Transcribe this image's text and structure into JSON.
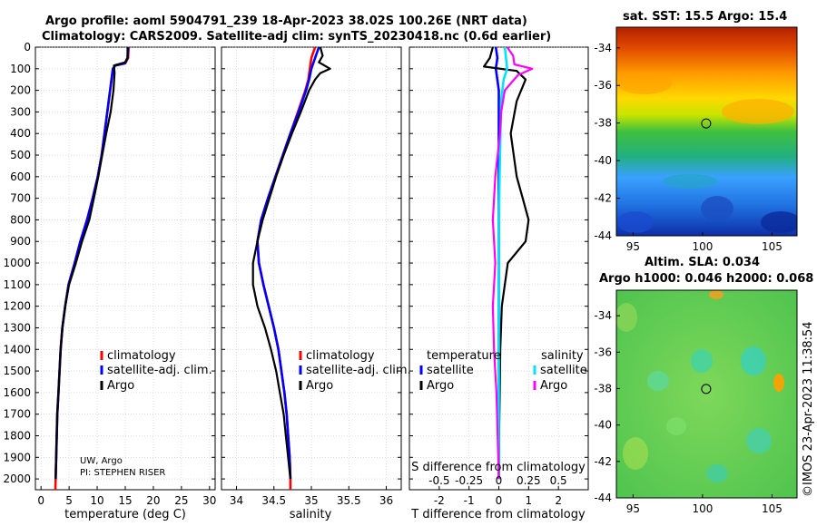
{
  "titles": {
    "line1": "Argo profile: aoml 5904791_239 18-Apr-2023 38.02S 100.26E (NRT data)",
    "line2": "Climatology: CARS2009. Satellite-adj clim: synTS_20230418.nc (0.6d earlier)",
    "sst": "sat. SST: 15.5 Argo: 15.4",
    "sla1": "Altim. SLA: 0.034",
    "sla2": "Argo h1000: 0.046 h2000: 0.068",
    "copyright": "©IMOS 23-Apr-2023 11:38:54"
  },
  "notes": {
    "line1": "UW, Argo",
    "line2": "PI: STEPHEN RISER"
  },
  "legend": {
    "climatology": "climatology",
    "satellite": "satellite-adj. clim.",
    "argo": "Argo",
    "temperature": "temperature",
    "salinity": "salinity",
    "satellite_short": "satellite",
    "s_diff_label": "S difference from climatology"
  },
  "colors": {
    "climatology": "#ff0000",
    "satellite": "#0000ff",
    "argo": "#000000",
    "sal_sat": "#00e5ff",
    "sal_argo": "#ff00ff"
  },
  "chart_data": [
    {
      "type": "line",
      "xlabel": "temperature (deg C)",
      "xlim": [
        -1,
        31
      ],
      "xticks": [
        0,
        5,
        10,
        15,
        20,
        25,
        30
      ],
      "ylim": [
        0,
        2050
      ],
      "yticks": [
        0,
        100,
        200,
        300,
        400,
        500,
        600,
        700,
        800,
        900,
        1000,
        1100,
        1200,
        1300,
        1400,
        1500,
        1600,
        1700,
        1800,
        1900,
        2000
      ],
      "series": [
        {
          "name": "climatology",
          "points": [
            [
              15.6,
              0
            ],
            [
              15.5,
              50
            ],
            [
              15.0,
              75
            ],
            [
              13.2,
              85
            ],
            [
              12.8,
              100
            ],
            [
              12.3,
              200
            ],
            [
              11.8,
              300
            ],
            [
              11.3,
              400
            ],
            [
              10.8,
              500
            ],
            [
              10.1,
              600
            ],
            [
              9.2,
              700
            ],
            [
              8.2,
              800
            ],
            [
              7.0,
              900
            ],
            [
              6.0,
              1000
            ],
            [
              4.9,
              1100
            ],
            [
              4.3,
              1200
            ],
            [
              3.8,
              1300
            ],
            [
              3.5,
              1400
            ],
            [
              3.3,
              1500
            ],
            [
              3.1,
              1600
            ],
            [
              2.9,
              1700
            ],
            [
              2.8,
              1800
            ],
            [
              2.7,
              1900
            ],
            [
              2.6,
              2000
            ],
            [
              2.55,
              2050
            ]
          ]
        },
        {
          "name": "satellite-adj. clim.",
          "points": [
            [
              15.5,
              0
            ],
            [
              15.4,
              50
            ],
            [
              14.9,
              75
            ],
            [
              13.2,
              85
            ],
            [
              12.8,
              100
            ],
            [
              12.3,
              200
            ],
            [
              11.8,
              300
            ],
            [
              11.3,
              400
            ],
            [
              10.8,
              500
            ],
            [
              10.1,
              600
            ],
            [
              9.2,
              700
            ],
            [
              8.2,
              800
            ],
            [
              7.0,
              900
            ],
            [
              6.0,
              1000
            ],
            [
              4.9,
              1100
            ],
            [
              4.3,
              1200
            ],
            [
              3.8,
              1300
            ],
            [
              3.5,
              1400
            ],
            [
              3.3,
              1500
            ],
            [
              3.1,
              1600
            ],
            [
              2.9,
              1700
            ],
            [
              2.8,
              1800
            ],
            [
              2.7,
              1900
            ],
            [
              2.6,
              2000
            ]
          ]
        },
        {
          "name": "Argo",
          "points": [
            [
              15.4,
              0
            ],
            [
              15.4,
              50
            ],
            [
              15.0,
              70
            ],
            [
              13.0,
              85
            ],
            [
              13.1,
              120
            ],
            [
              12.9,
              200
            ],
            [
              12.4,
              300
            ],
            [
              11.6,
              400
            ],
            [
              10.9,
              500
            ],
            [
              10.2,
              600
            ],
            [
              9.4,
              700
            ],
            [
              8.6,
              800
            ],
            [
              7.3,
              900
            ],
            [
              6.2,
              1000
            ],
            [
              5.0,
              1100
            ],
            [
              4.3,
              1200
            ],
            [
              3.8,
              1300
            ],
            [
              3.5,
              1400
            ],
            [
              3.3,
              1500
            ],
            [
              3.1,
              1600
            ],
            [
              2.9,
              1700
            ],
            [
              2.8,
              1800
            ],
            [
              2.7,
              1900
            ],
            [
              2.6,
              2000
            ]
          ]
        }
      ]
    },
    {
      "type": "line",
      "xlabel": "salinity",
      "xlim": [
        33.8,
        36.2
      ],
      "xticks": [
        34,
        34.5,
        35,
        35.5,
        36
      ],
      "xticklabels": [
        "34",
        "34.5",
        "35",
        "35.5",
        "36"
      ],
      "ylim": [
        0,
        2050
      ],
      "series": [
        {
          "name": "climatology",
          "points": [
            [
              35.05,
              0
            ],
            [
              35.0,
              50
            ],
            [
              34.98,
              100
            ],
            [
              34.96,
              150
            ],
            [
              34.92,
              200
            ],
            [
              34.82,
              300
            ],
            [
              34.72,
              400
            ],
            [
              34.62,
              500
            ],
            [
              34.52,
              600
            ],
            [
              34.42,
              700
            ],
            [
              34.33,
              800
            ],
            [
              34.28,
              900
            ],
            [
              34.3,
              1000
            ],
            [
              34.36,
              1100
            ],
            [
              34.43,
              1200
            ],
            [
              34.5,
              1300
            ],
            [
              34.56,
              1400
            ],
            [
              34.6,
              1500
            ],
            [
              34.64,
              1600
            ],
            [
              34.67,
              1700
            ],
            [
              34.69,
              1800
            ],
            [
              34.71,
              1900
            ],
            [
              34.72,
              2000
            ],
            [
              34.72,
              2050
            ]
          ]
        },
        {
          "name": "satellite-adj. clim.",
          "points": [
            [
              35.1,
              0
            ],
            [
              35.05,
              50
            ],
            [
              35.0,
              100
            ],
            [
              34.97,
              150
            ],
            [
              34.93,
              200
            ],
            [
              34.83,
              300
            ],
            [
              34.72,
              400
            ],
            [
              34.62,
              500
            ],
            [
              34.52,
              600
            ],
            [
              34.42,
              700
            ],
            [
              34.33,
              800
            ],
            [
              34.28,
              900
            ],
            [
              34.3,
              1000
            ],
            [
              34.36,
              1100
            ],
            [
              34.43,
              1200
            ],
            [
              34.5,
              1300
            ],
            [
              34.56,
              1400
            ],
            [
              34.6,
              1500
            ],
            [
              34.64,
              1600
            ],
            [
              34.67,
              1700
            ],
            [
              34.69,
              1800
            ],
            [
              34.71,
              1900
            ],
            [
              34.72,
              2000
            ]
          ]
        },
        {
          "name": "Argo",
          "points": [
            [
              35.12,
              0
            ],
            [
              35.15,
              40
            ],
            [
              35.1,
              70
            ],
            [
              35.25,
              100
            ],
            [
              35.12,
              120
            ],
            [
              35.05,
              150
            ],
            [
              34.97,
              200
            ],
            [
              34.86,
              300
            ],
            [
              34.74,
              400
            ],
            [
              34.63,
              500
            ],
            [
              34.53,
              600
            ],
            [
              34.44,
              700
            ],
            [
              34.35,
              800
            ],
            [
              34.28,
              900
            ],
            [
              34.22,
              1000
            ],
            [
              34.22,
              1100
            ],
            [
              34.28,
              1200
            ],
            [
              34.38,
              1300
            ],
            [
              34.46,
              1400
            ],
            [
              34.53,
              1500
            ],
            [
              34.58,
              1600
            ],
            [
              34.63,
              1700
            ],
            [
              34.66,
              1800
            ],
            [
              34.69,
              1900
            ],
            [
              34.72,
              2000
            ]
          ]
        }
      ]
    },
    {
      "type": "line",
      "xlabel": "T difference from climatology",
      "xlim": [
        -3,
        3
      ],
      "xticks": [
        -2,
        -1,
        0,
        1,
        2
      ],
      "s_xticks": [
        -0.5,
        -0.25,
        0,
        0.25,
        0.5
      ],
      "ylim": [
        0,
        2050
      ],
      "series": [
        {
          "name": "temperature satellite",
          "points": [
            [
              -0.1,
              0
            ],
            [
              -0.05,
              50
            ],
            [
              -0.1,
              100
            ],
            [
              0,
              200
            ],
            [
              0,
              400
            ],
            [
              0,
              600
            ],
            [
              0,
              800
            ],
            [
              0,
              1000
            ],
            [
              0,
              1200
            ],
            [
              0,
              1400
            ],
            [
              0,
              1600
            ],
            [
              0,
              1800
            ],
            [
              0,
              2000
            ]
          ]
        },
        {
          "name": "temperature Argo",
          "points": [
            [
              -0.2,
              0
            ],
            [
              -0.3,
              50
            ],
            [
              -0.5,
              90
            ],
            [
              0.6,
              110
            ],
            [
              0.9,
              150
            ],
            [
              0.6,
              250
            ],
            [
              0.4,
              400
            ],
            [
              0.5,
              500
            ],
            [
              0.6,
              600
            ],
            [
              0.8,
              700
            ],
            [
              1.0,
              800
            ],
            [
              0.9,
              900
            ],
            [
              0.3,
              1000
            ],
            [
              0.2,
              1100
            ],
            [
              0.1,
              1200
            ],
            [
              0.05,
              1400
            ],
            [
              0.03,
              1600
            ],
            [
              0.01,
              1800
            ],
            [
              0,
              2000
            ]
          ]
        },
        {
          "name": "salinity satellite",
          "points": [
            [
              0.05,
              0
            ],
            [
              0.06,
              50
            ],
            [
              0.07,
              100
            ],
            [
              0.04,
              150
            ],
            [
              0.02,
              250
            ],
            [
              0.01,
              500
            ],
            [
              0,
              800
            ],
            [
              0,
              1200
            ],
            [
              0,
              1600
            ],
            [
              0,
              2000
            ]
          ]
        },
        {
          "name": "salinity Argo",
          "points": [
            [
              0.07,
              0
            ],
            [
              0.12,
              40
            ],
            [
              0.13,
              80
            ],
            [
              0.28,
              100
            ],
            [
              0.16,
              130
            ],
            [
              0.05,
              200
            ],
            [
              0.02,
              300
            ],
            [
              0.01,
              400
            ],
            [
              -0.03,
              600
            ],
            [
              -0.05,
              800
            ],
            [
              -0.03,
              1000
            ],
            [
              -0.05,
              1200
            ],
            [
              -0.04,
              1400
            ],
            [
              -0.02,
              1600
            ],
            [
              -0.01,
              1800
            ],
            [
              0,
              2000
            ]
          ]
        }
      ]
    }
  ],
  "maps": [
    {
      "name": "sst",
      "lon_ticks": [
        "95",
        "100",
        "105"
      ],
      "lat_ticks": [
        "-34",
        "-36",
        "-38",
        "-40",
        "-42",
        "-44"
      ],
      "argo_marker": [
        100.26,
        -38.02
      ]
    },
    {
      "name": "sla",
      "lon_ticks": [
        "95",
        "100",
        "105"
      ],
      "lat_ticks": [
        "-34",
        "-36",
        "-38",
        "-40",
        "-42",
        "-44"
      ],
      "argo_marker": [
        100.26,
        -38.02
      ]
    }
  ]
}
